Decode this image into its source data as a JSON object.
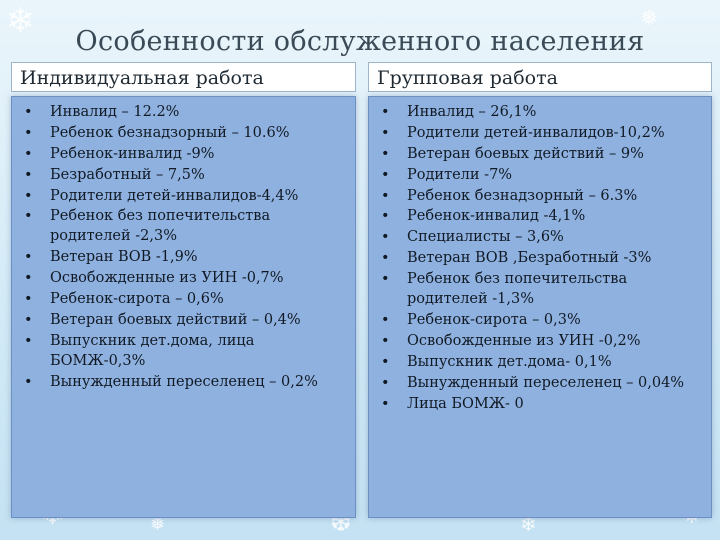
{
  "title": "Особенности обслуженного населения",
  "columns": {
    "left": {
      "heading": "Индивидуальная работа",
      "items": [
        "Инвалид – 12.2%",
        "Ребенок безнадзорный – 10.6%",
        "Ребенок-инвалид -9%",
        "Безработный – 7,5%",
        "Родители детей-инвалидов-4,4%",
        "Ребенок без попечительства родителей -2,3%",
        "Ветеран ВОВ -1,9%",
        "Освобожденные из УИН -0,7%",
        "Ребенок-сирота – 0,6%",
        "Ветеран боевых действий – 0,4%",
        "Выпускник дет.дома, лица БОМЖ-0,3%",
        "Вынужденный переселенец – 0,2%"
      ]
    },
    "right": {
      "heading": "Групповая работа",
      "items": [
        "Инвалид – 26,1%",
        "Родители детей-инвалидов-10,2%",
        "Ветеран боевых действий – 9%",
        "Родители -7%",
        "Ребенок безнадзорный – 6.3%",
        "Ребенок-инвалид -4,1%",
        "Специалисты – 3,6%",
        "Ветеран ВОВ ,Безработный -3%",
        "Ребенок без попечительства родителей -1,3%",
        "Ребенок-сирота – 0,3%",
        "Освобожденные из УИН -0,2%",
        "Выпускник дет.дома- 0,1%",
        "Вынужденный переселенец – 0,04%",
        "Лица БОМЖ- 0"
      ]
    }
  },
  "bullet_symbol": "•",
  "colors": {
    "background": "#d4ebf7",
    "panel": "#8fb1e0",
    "heading_box": "#ffffff",
    "text": "#111a24"
  }
}
